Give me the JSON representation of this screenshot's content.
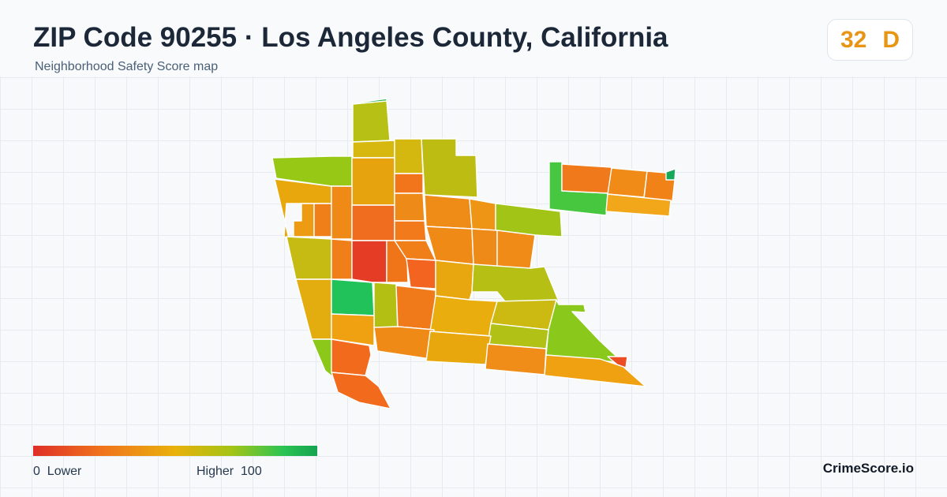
{
  "header": {
    "title": "ZIP Code 90255 · Los Angeles County, California",
    "subtitle": "Neighborhood Safety Score map"
  },
  "score": {
    "value": "32",
    "grade": "D",
    "color": "#e89515"
  },
  "legend": {
    "low_value": "0",
    "low_label": "Lower",
    "high_label": "Higher",
    "high_value": "100",
    "colors": [
      "#df2f27",
      "#f0761c",
      "#e9b10b",
      "#a3c416",
      "#2bc453",
      "#14a350"
    ]
  },
  "brand": "CrimeScore.io"
}
